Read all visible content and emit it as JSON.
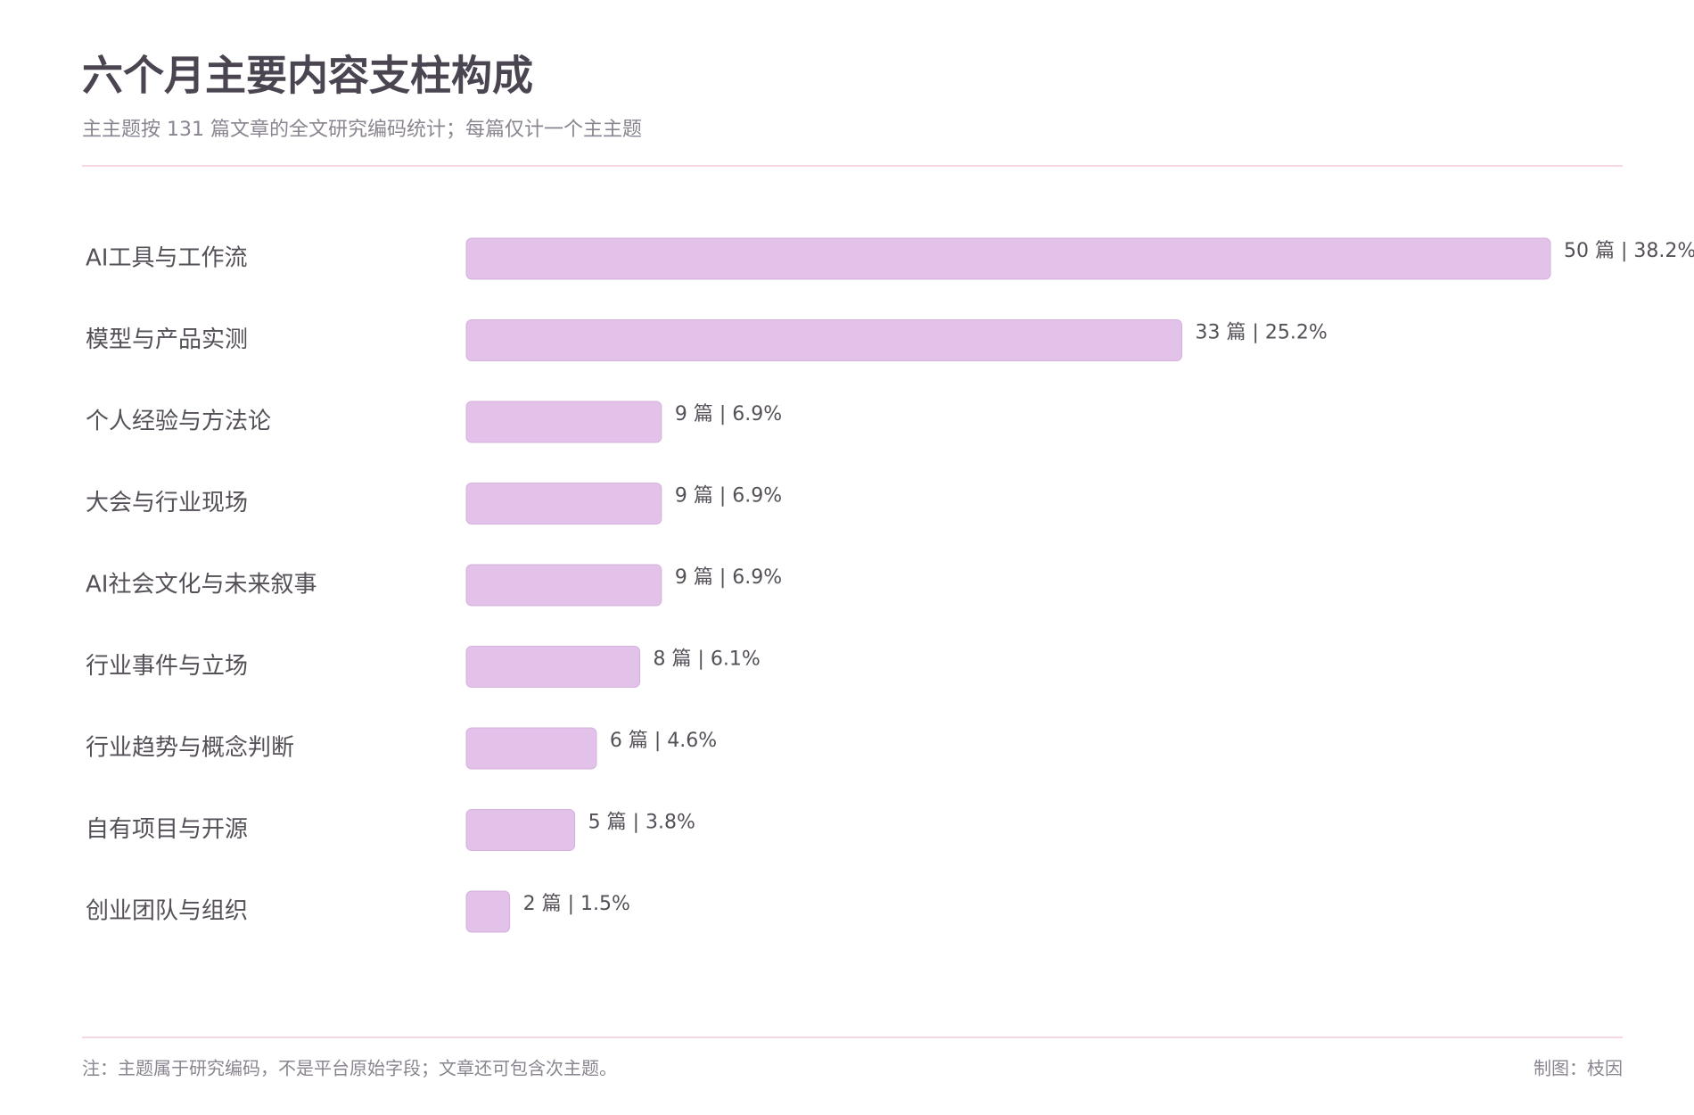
{
  "chart_data": {
    "type": "bar",
    "orientation": "horizontal",
    "title": "六个月主要内容支柱构成",
    "subtitle": "主主题按 131 篇文章的全文研究编码统计；每篇仅计一个主主题",
    "categories": [
      "AI工具与工作流",
      "模型与产品实测",
      "个人经验与方法论",
      "大会与行业现场",
      "AI社会文化与未来叙事",
      "行业事件与立场",
      "行业趋势与概念判断",
      "自有项目与开源",
      "创业团队与组织"
    ],
    "values": [
      50,
      33,
      9,
      9,
      9,
      8,
      6,
      5,
      2
    ],
    "value_labels": [
      "50 篇 | 38.2%",
      "33 篇 | 25.2%",
      "9 篇 | 6.9%",
      "9 篇 | 6.9%",
      "9 篇 | 6.9%",
      "8 篇 | 6.1%",
      "6 篇 | 4.6%",
      "5 篇 | 3.8%",
      "2 篇 | 1.5%"
    ],
    "color": "#e2c2e8",
    "footnote": "注：主题属于研究编码，不是平台原始字段；文章还可包含次主题。",
    "credit": "制图：枝因"
  }
}
